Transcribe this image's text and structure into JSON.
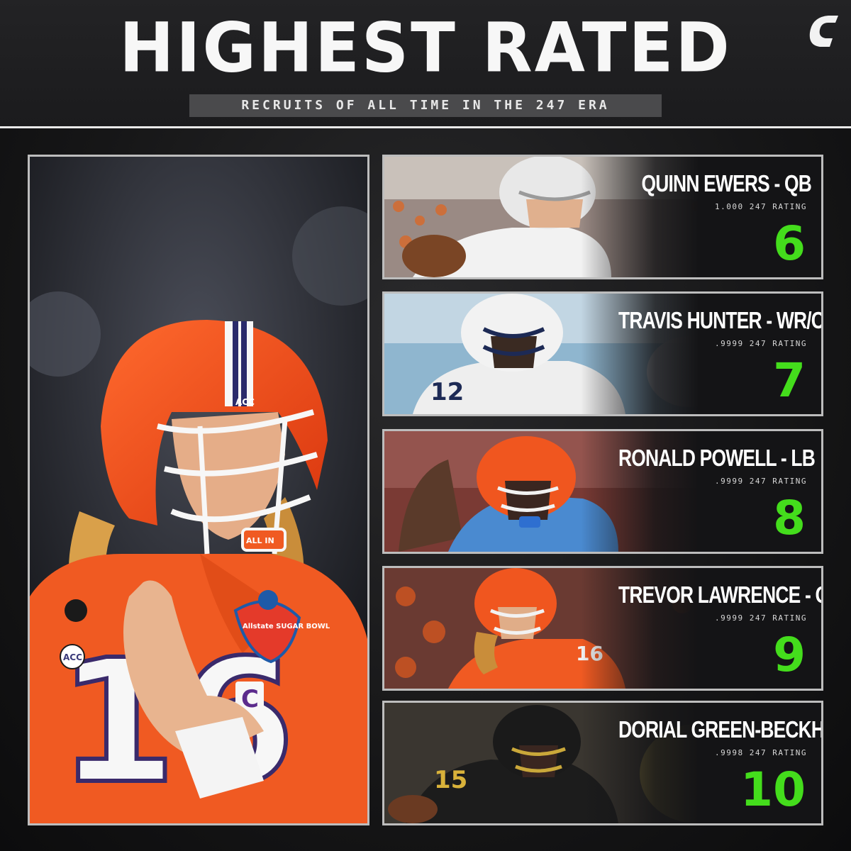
{
  "header": {
    "title": "HIGHEST RATED",
    "subtitle": "RECRUITS OF ALL TIME IN THE 247 ERA"
  },
  "hero": {
    "jersey_number": "16",
    "captain_patch": "C",
    "helmet_text": "ALL IN",
    "helmet_logo": "ACC",
    "bowl_patch": "Allstate SUGAR BOWL",
    "sleeve_patch": "ACC"
  },
  "colors": {
    "accent_green": "#44dd1c",
    "card_border": "#bdbdbd",
    "clemson_orange": "#f15a24"
  },
  "players": [
    {
      "name": "QUINN EWERS - QB",
      "rating": "1.000 247 RATING",
      "rank": "6",
      "jersey": ""
    },
    {
      "name": "TRAVIS HUNTER - WR/CB",
      "rating": ".9999 247 RATING",
      "rank": "7",
      "jersey": "12"
    },
    {
      "name": "RONALD POWELL - LB",
      "rating": ".9999 247 RATING",
      "rank": "8",
      "jersey": ""
    },
    {
      "name": "TREVOR LAWRENCE - QB",
      "rating": ".9999 247 RATING",
      "rank": "9",
      "jersey": "16"
    },
    {
      "name": "DORIAL GREEN-BECKHAM - WR",
      "rating": ".9998 247 RATING",
      "rank": "10",
      "jersey": "15"
    }
  ]
}
